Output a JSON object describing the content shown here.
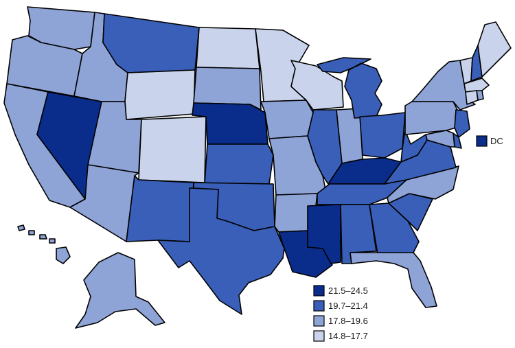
{
  "bins": [
    {
      "id": "b1",
      "label": "21.5–24.5",
      "color": "#0a2d8c"
    },
    {
      "id": "b2",
      "label": "19.7–21.4",
      "color": "#3a5fb8"
    },
    {
      "id": "b3",
      "label": "17.8–19.6",
      "color": "#8ea3d6"
    },
    {
      "id": "b4",
      "label": "14.8–17.7",
      "color": "#c9d4ec"
    }
  ],
  "dc": {
    "label": "DC",
    "bin": "b1"
  },
  "states": {
    "WA": "b3",
    "OR": "b3",
    "CA": "b3",
    "NV": "b1",
    "ID": "b3",
    "MT": "b2",
    "WY": "b4",
    "UT": "b3",
    "CO": "b4",
    "AZ": "b3",
    "NM": "b2",
    "ND": "b4",
    "SD": "b3",
    "NE": "b1",
    "KS": "b2",
    "OK": "b2",
    "TX": "b2",
    "MN": "b4",
    "IA": "b3",
    "MO": "b3",
    "AR": "b3",
    "LA": "b1",
    "WI": "b4",
    "IL": "b2",
    "IN": "b3",
    "MI": "b2",
    "OH": "b2",
    "KY": "b1",
    "TN": "b2",
    "MS": "b1",
    "AL": "b2",
    "GA": "b2",
    "FL": "b3",
    "SC": "b2",
    "NC": "b3",
    "VA": "b2",
    "WV": "b2",
    "PA": "b3",
    "NY": "b3",
    "VT": "b4",
    "NH": "b2",
    "ME": "b4",
    "MA": "b4",
    "RI": "b3",
    "CT": "b4",
    "NJ": "b2",
    "DE": "b2",
    "MD": "b3",
    "AK": "b3",
    "HI": "b3"
  }
}
